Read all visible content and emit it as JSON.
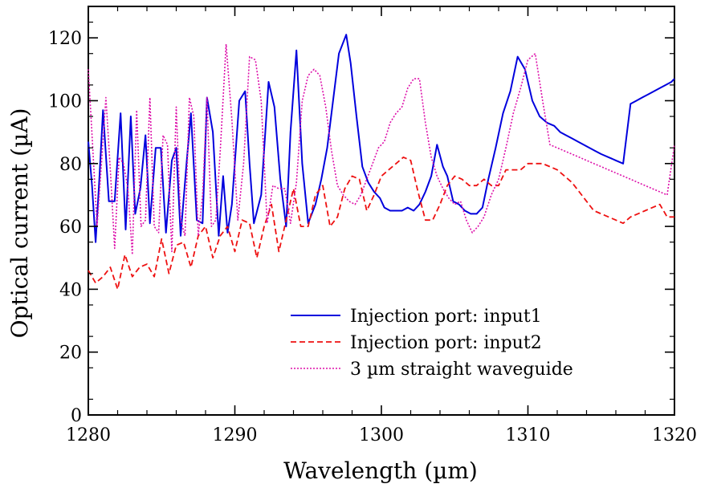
{
  "chart_data": {
    "type": "line",
    "title": "",
    "xlabel": "Wavelength (µm)",
    "ylabel": "Optical current (µA)",
    "xlim": [
      1280,
      1320
    ],
    "ylim": [
      0,
      130
    ],
    "xticks": [
      1280,
      1290,
      1300,
      1310,
      1320
    ],
    "yticks": [
      0,
      20,
      40,
      60,
      80,
      100,
      120
    ],
    "legend_position": "bottom-right",
    "grid": false,
    "series": [
      {
        "name": "Injection port: input1",
        "color": "#0000dd",
        "style": "solid",
        "x": [
          1280,
          1280.25,
          1280.5,
          1280.75,
          1281,
          1281.4,
          1281.8,
          1282.2,
          1282.55,
          1282.9,
          1283.2,
          1283.55,
          1283.9,
          1284.2,
          1284.6,
          1284.95,
          1285.3,
          1285.7,
          1286,
          1286.3,
          1286.7,
          1287,
          1287.4,
          1287.8,
          1288.1,
          1288.5,
          1288.9,
          1289.2,
          1289.5,
          1289.8,
          1290.3,
          1290.7,
          1291.0,
          1291.3,
          1291.8,
          1292.3,
          1292.7,
          1293.1,
          1293.5,
          1293.8,
          1294.2,
          1294.6,
          1295.0,
          1295.5,
          1295.9,
          1296.3,
          1296.7,
          1297.1,
          1297.6,
          1297.9,
          1298.3,
          1298.7,
          1299.1,
          1299.5,
          1299.9,
          1300.2,
          1300.6,
          1301.0,
          1301.4,
          1301.8,
          1302.2,
          1302.6,
          1303.0,
          1303.4,
          1303.8,
          1304.2,
          1304.5,
          1304.9,
          1305.3,
          1305.7,
          1306.1,
          1306.5,
          1306.9,
          1307.3,
          1307.8,
          1308.3,
          1308.8,
          1309.3,
          1309.8,
          1310.3,
          1310.8,
          1311.3,
          1311.8,
          1312.2,
          1312.6,
          1313.0,
          1313.4,
          1313.8,
          1314.2,
          1314.6,
          1315.0,
          1315.5,
          1316.0,
          1316.5,
          1317.0,
          1317.4,
          1317.8,
          1318.2,
          1318.6,
          1319.0,
          1319.4,
          1319.8,
          1320
        ],
        "y": [
          87,
          73,
          55,
          75,
          97,
          68,
          68,
          96,
          59,
          95,
          64,
          72,
          89,
          61,
          85,
          85,
          58,
          81,
          85,
          57,
          80,
          96,
          62,
          61,
          101,
          90,
          57,
          76,
          58,
          67,
          100,
          103,
          80,
          61,
          70,
          106,
          98,
          75,
          60,
          90,
          116,
          80,
          61,
          67,
          75,
          85,
          100,
          115,
          121,
          112,
          95,
          79,
          74,
          71,
          69,
          66,
          65,
          65,
          65,
          66,
          65,
          67,
          71,
          76,
          86,
          79,
          76,
          68,
          67,
          65,
          64,
          64,
          66,
          75,
          85,
          96,
          103,
          114,
          110,
          100,
          95,
          93,
          92,
          90,
          89,
          88,
          87,
          86,
          85,
          84,
          83,
          82,
          81,
          80,
          99,
          100,
          101,
          102,
          103,
          104,
          105,
          106,
          107
        ],
        "note": "series digitized from plot"
      },
      {
        "name": "Injection port: input2",
        "color": "#ee1111",
        "style": "dashed",
        "x": [
          1280,
          1280.5,
          1281,
          1281.5,
          1282,
          1282.5,
          1283,
          1283.5,
          1284,
          1284.5,
          1285,
          1285.5,
          1286,
          1286.5,
          1287,
          1287.5,
          1288,
          1288.5,
          1289,
          1289.5,
          1290,
          1290.5,
          1291,
          1291.5,
          1292,
          1292.5,
          1293,
          1293.5,
          1294,
          1294.5,
          1295,
          1295.5,
          1296,
          1296.5,
          1297,
          1297.5,
          1298,
          1298.5,
          1299,
          1299.5,
          1300,
          1300.5,
          1301,
          1301.5,
          1302,
          1302.5,
          1303,
          1303.5,
          1304,
          1304.5,
          1305,
          1305.5,
          1306,
          1306.5,
          1307,
          1307.5,
          1308,
          1308.5,
          1309,
          1309.5,
          1310,
          1310.5,
          1311,
          1311.5,
          1312,
          1312.5,
          1313,
          1313.5,
          1314,
          1314.5,
          1315,
          1315.5,
          1316,
          1316.5,
          1317,
          1317.5,
          1318,
          1318.5,
          1319,
          1319.5,
          1320
        ],
        "y": [
          46,
          42,
          44,
          47,
          40,
          51,
          44,
          47,
          48,
          44,
          56,
          45,
          54,
          55,
          47,
          57,
          60,
          50,
          57,
          60,
          52,
          62,
          61,
          50,
          60,
          67,
          52,
          62,
          72,
          60,
          60,
          70,
          73,
          60,
          63,
          72,
          76,
          75,
          65,
          70,
          76,
          78,
          80,
          82,
          81,
          71,
          62,
          62,
          67,
          73,
          76,
          75,
          73,
          73,
          75,
          73,
          73,
          78,
          78,
          78,
          80,
          80,
          80,
          79,
          78,
          76,
          74,
          71,
          68,
          65,
          64,
          63,
          62,
          61,
          63,
          64,
          65,
          66,
          67,
          63,
          63
        ],
        "note": "series digitized from plot"
      },
      {
        "name": "3 µm straight waveguide",
        "color": "#dd11aa",
        "style": "dotted",
        "x": [
          1280,
          1280.3,
          1280.6,
          1280.9,
          1281.2,
          1281.5,
          1281.8,
          1282.1,
          1282.4,
          1282.7,
          1283.0,
          1283.3,
          1283.6,
          1283.9,
          1284.2,
          1284.5,
          1284.8,
          1285.1,
          1285.4,
          1285.7,
          1286.0,
          1286.3,
          1286.6,
          1286.9,
          1287.2,
          1287.5,
          1287.8,
          1288.1,
          1288.4,
          1288.7,
          1289.0,
          1289.4,
          1289.8,
          1290.2,
          1290.6,
          1291.0,
          1291.4,
          1291.8,
          1292.2,
          1292.6,
          1293.0,
          1293.4,
          1293.8,
          1294.2,
          1294.6,
          1295.0,
          1295.4,
          1295.8,
          1296.2,
          1296.6,
          1297.0,
          1297.4,
          1297.8,
          1298.2,
          1298.6,
          1299.0,
          1299.4,
          1299.8,
          1300.2,
          1300.6,
          1301.0,
          1301.4,
          1301.8,
          1302.2,
          1302.6,
          1303.0,
          1303.4,
          1303.8,
          1304.2,
          1304.6,
          1305.0,
          1305.4,
          1305.8,
          1306.2,
          1306.6,
          1307.0,
          1307.5,
          1308.0,
          1308.5,
          1309.0,
          1309.5,
          1310.0,
          1310.5,
          1311.0,
          1311.5,
          1312.0,
          1312.5,
          1313.0,
          1313.5,
          1314.0,
          1314.5,
          1315.0,
          1315.5,
          1316.0,
          1316.5,
          1317.0,
          1317.5,
          1318.0,
          1318.5,
          1319.0,
          1319.5,
          1320
        ],
        "y": [
          110,
          85,
          60,
          80,
          101,
          78,
          53,
          82,
          80,
          72,
          51,
          97,
          60,
          62,
          101,
          60,
          58,
          89,
          86,
          52,
          98,
          62,
          57,
          101,
          95,
          57,
          70,
          101,
          60,
          62,
          84,
          118,
          94,
          62,
          80,
          114,
          113,
          100,
          61,
          73,
          72,
          72,
          61,
          74,
          100,
          108,
          110,
          108,
          98,
          84,
          73,
          70,
          68,
          67,
          70,
          75,
          80,
          85,
          87,
          93,
          96,
          98,
          104,
          107,
          107,
          93,
          82,
          76,
          72,
          69,
          67,
          68,
          62,
          58,
          60,
          63,
          70,
          75,
          85,
          96,
          104,
          113,
          115,
          100,
          86,
          85,
          84,
          83,
          82,
          81,
          80,
          79,
          78,
          77,
          76,
          75,
          74,
          73,
          72,
          71,
          70,
          86
        ],
        "note": "series digitized from plot"
      }
    ]
  }
}
